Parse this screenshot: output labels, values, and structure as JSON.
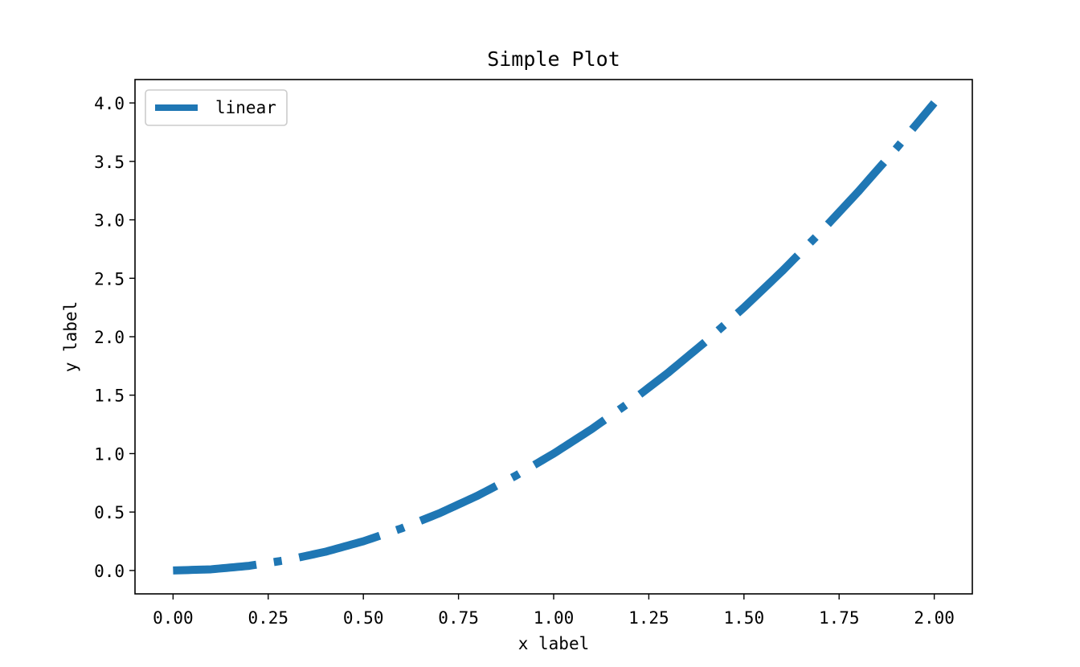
{
  "chart_data": {
    "type": "line",
    "title": "Simple Plot",
    "xlabel": "x label",
    "ylabel": "y label",
    "xlim": [
      -0.1,
      2.1
    ],
    "ylim": [
      -0.2,
      4.2
    ],
    "x_ticks": [
      0,
      0.25,
      0.5,
      0.75,
      1.0,
      1.25,
      1.5,
      1.75,
      2.0
    ],
    "x_tick_labels": [
      "0.00",
      "0.25",
      "0.50",
      "0.75",
      "1.00",
      "1.25",
      "1.50",
      "1.75",
      "2.00"
    ],
    "y_ticks": [
      0,
      0.5,
      1.0,
      1.5,
      2.0,
      2.5,
      3.0,
      3.5,
      4.0
    ],
    "y_tick_labels": [
      "0.0",
      "0.5",
      "1.0",
      "1.5",
      "2.0",
      "2.5",
      "3.0",
      "3.5",
      "4.0"
    ],
    "grid": false,
    "legend": {
      "position": "top-left"
    },
    "series": [
      {
        "name": "linear",
        "color": "#1f77b4",
        "linestyle": "dash-dot",
        "x": [
          0,
          0.1,
          0.2,
          0.3,
          0.4,
          0.5,
          0.6,
          0.7,
          0.8,
          0.9,
          1.0,
          1.1,
          1.2,
          1.3,
          1.4,
          1.5,
          1.6,
          1.7,
          1.8,
          1.9,
          2.0
        ],
        "y": [
          0,
          0.01,
          0.04,
          0.09,
          0.16,
          0.25,
          0.36,
          0.49,
          0.64,
          0.81,
          1.0,
          1.21,
          1.44,
          1.69,
          1.96,
          2.25,
          2.56,
          2.89,
          3.24,
          3.61,
          4.0
        ]
      }
    ]
  }
}
